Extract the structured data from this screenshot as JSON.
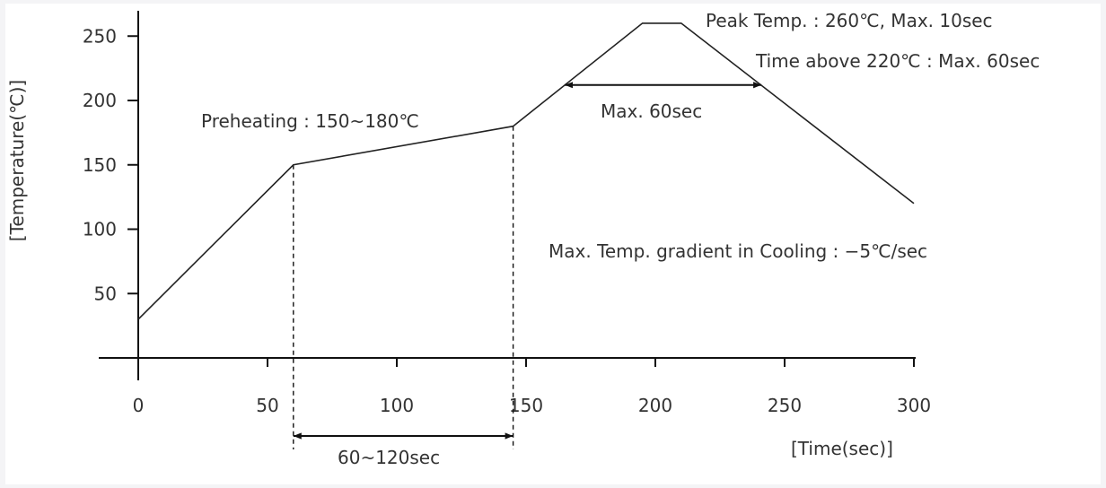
{
  "chart_data": {
    "type": "line",
    "title": "",
    "xlabel": "[Time(sec)]",
    "ylabel": "[Temperature(℃)]",
    "xlim": [
      0,
      300
    ],
    "ylim": [
      0,
      250
    ],
    "xticks": [
      0,
      50,
      100,
      150,
      200,
      250,
      300
    ],
    "yticks": [
      50,
      100,
      150,
      200,
      250
    ],
    "grid": false,
    "series": [
      {
        "x": [
          0,
          60,
          145,
          195,
          210,
          300
        ],
        "y": [
          30,
          150,
          180,
          260,
          260,
          120
        ]
      }
    ],
    "annotations": {
      "peak": "Peak Temp. : 260℃,  Max. 10sec",
      "time_above": "Time above 220℃ : Max. 60sec",
      "max60": "Max. 60sec",
      "preheating": "Preheating : 150~180℃",
      "cooling": "Max. Temp. gradient in Cooling : −5℃/sec",
      "preheat_time": "60~120sec"
    },
    "markers": {
      "preheat_start_x": 60,
      "preheat_end_x": 145,
      "above220_start_x": 165,
      "above220_end_x": 241,
      "above220_y": 212
    }
  }
}
